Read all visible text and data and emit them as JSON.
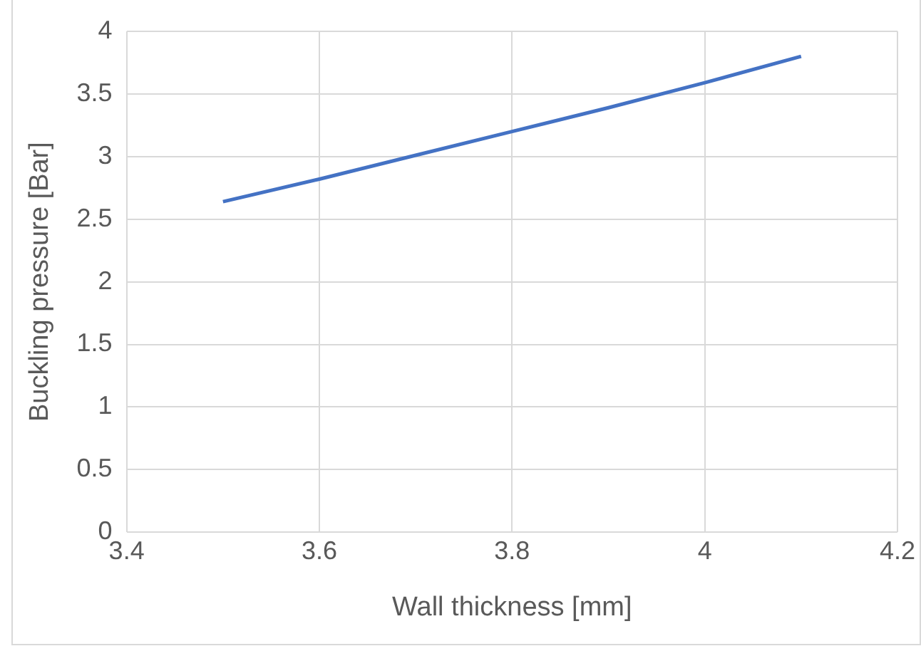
{
  "chart_data": {
    "type": "line",
    "xlabel": "Wall thickness [mm]",
    "ylabel": "Buckling pressure [Bar]",
    "x": [
      3.5,
      3.6,
      3.7,
      3.8,
      3.9,
      4.0,
      4.1
    ],
    "series": [
      {
        "color": "#4472c4",
        "values": [
          2.64,
          2.82,
          3.01,
          3.2,
          3.39,
          3.59,
          3.8
        ]
      }
    ],
    "xlim": [
      3.4,
      4.2
    ],
    "xticks": [
      3.4,
      3.6,
      3.8,
      4,
      4.2
    ],
    "ylim": [
      0,
      4
    ],
    "yticks": [
      0,
      0.5,
      1,
      1.5,
      2,
      2.5,
      3,
      3.5,
      4
    ],
    "grid": true,
    "legend": false,
    "marker": "none",
    "line_style": "solid"
  }
}
